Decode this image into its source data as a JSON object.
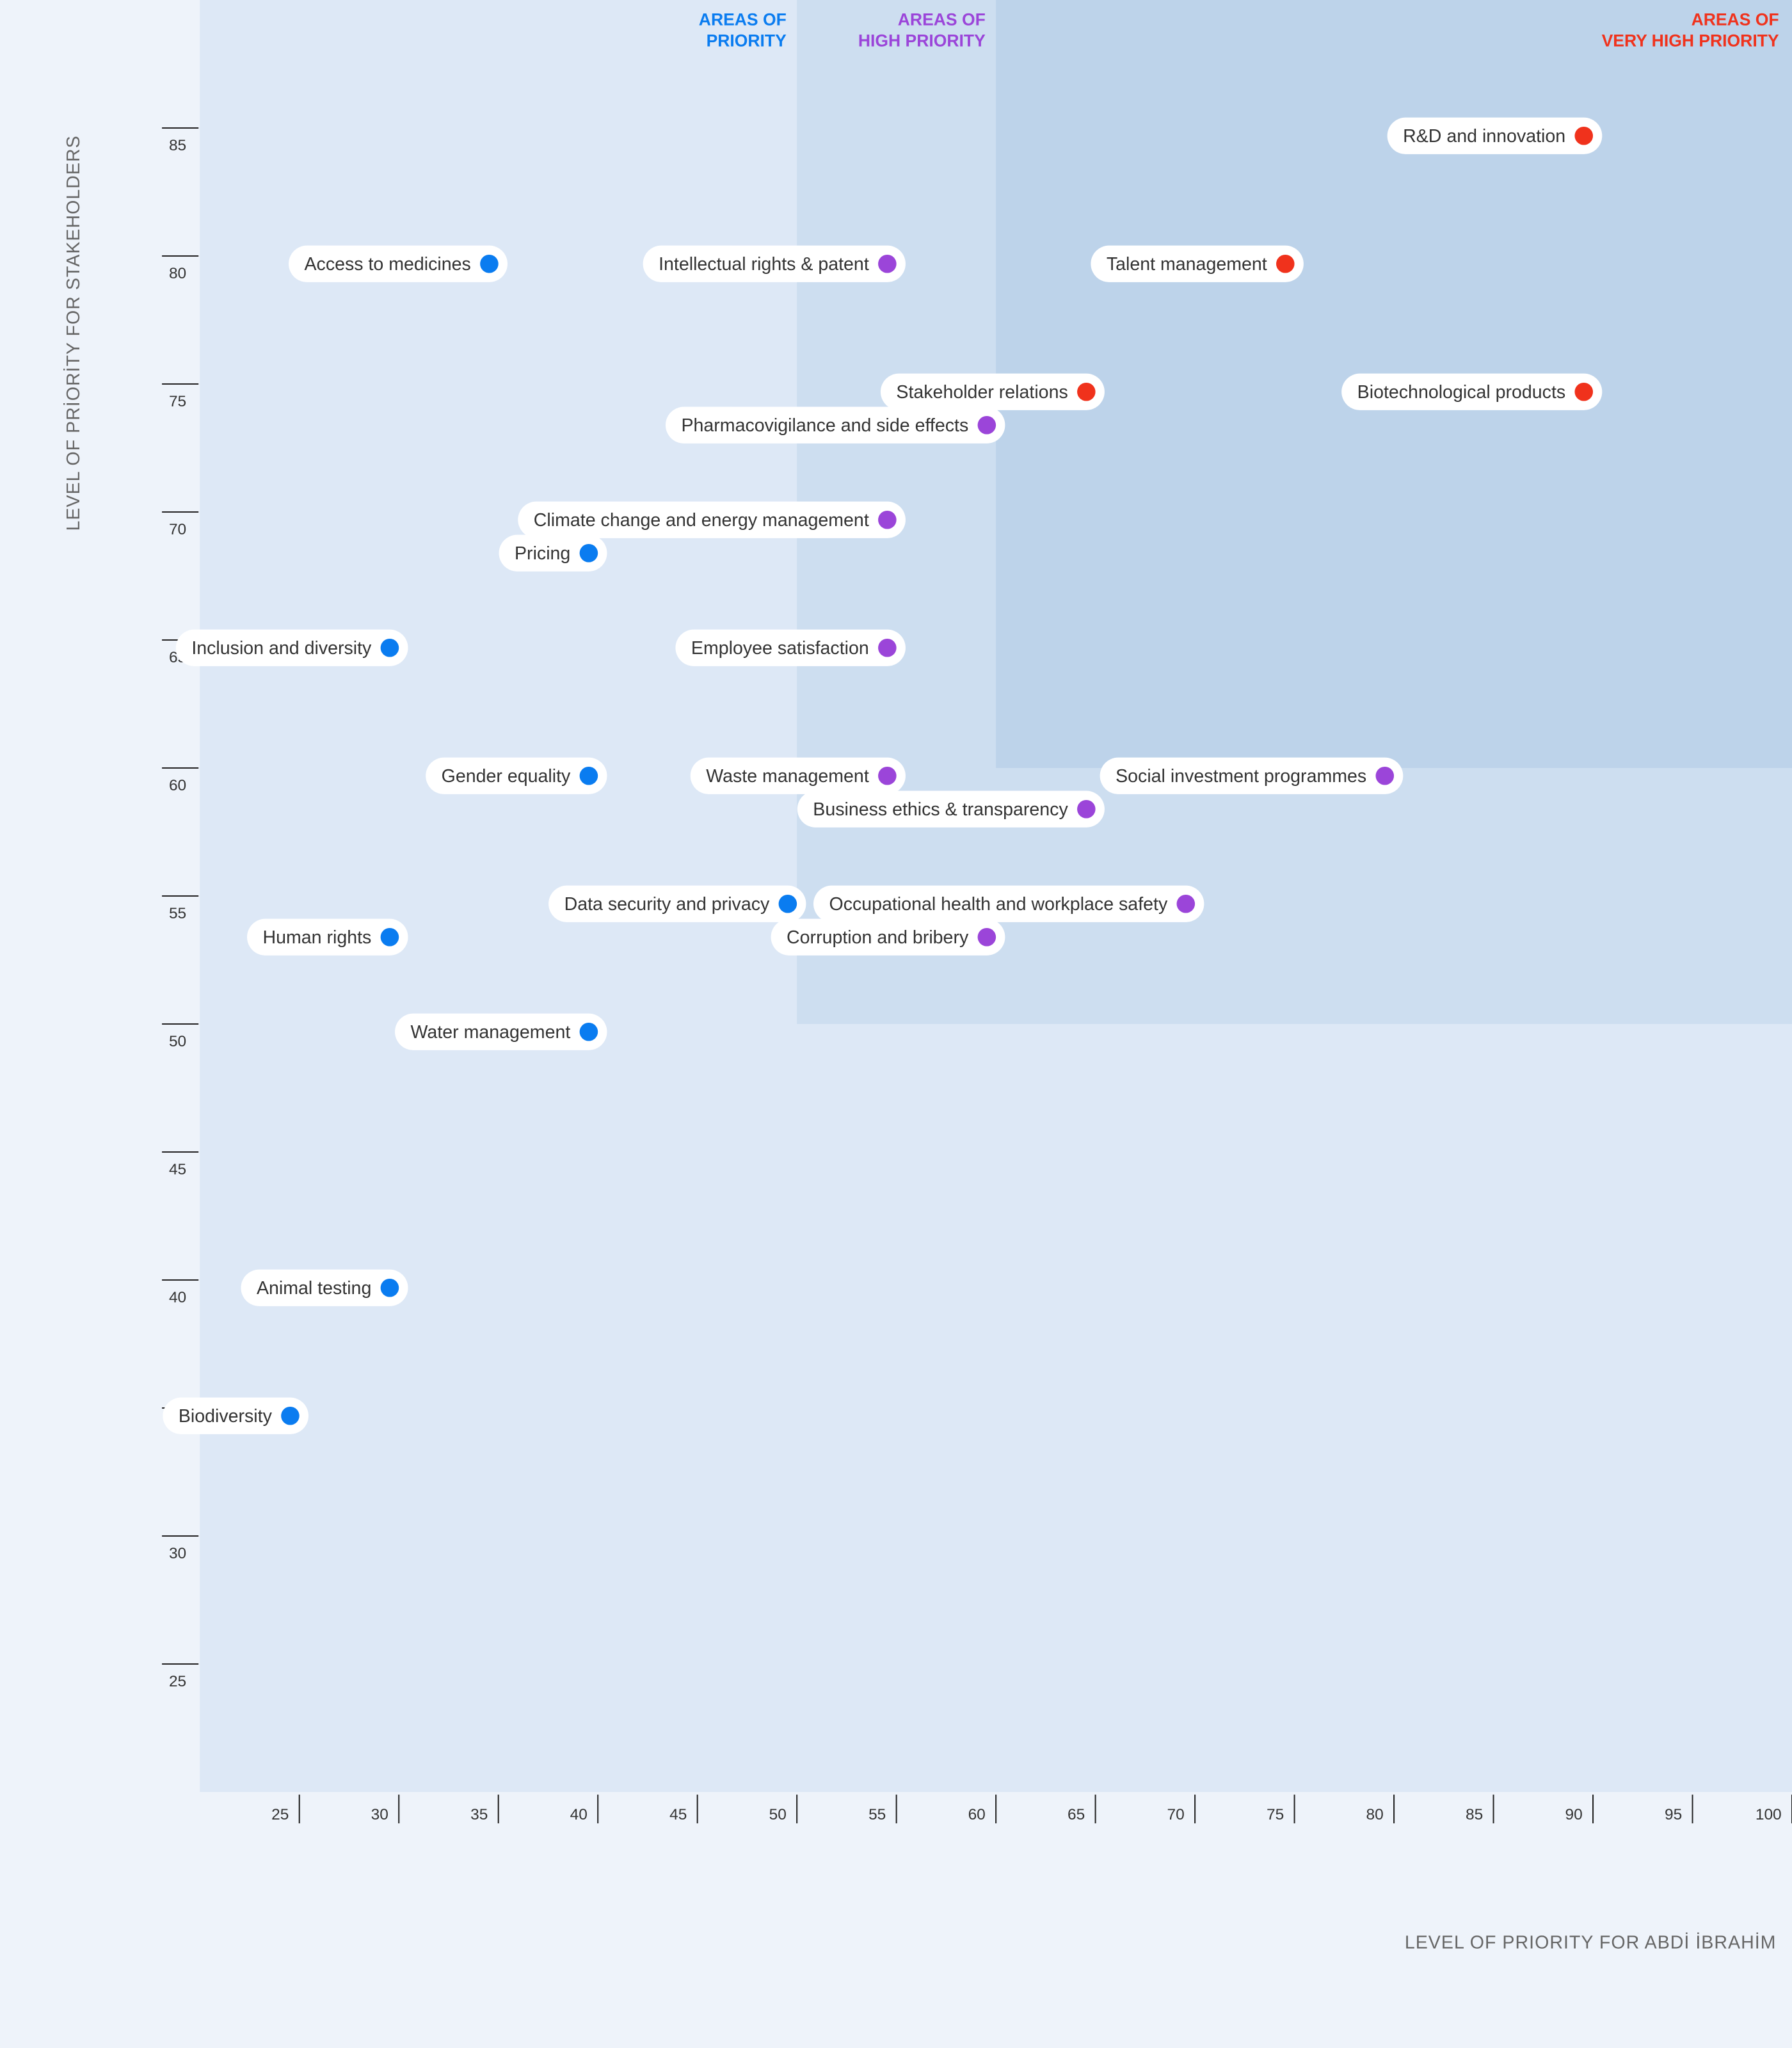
{
  "chart_data": {
    "type": "scatter",
    "x_label": "LEVEL OF PRIORITY FOR ABDİ İBRAHİM",
    "y_label": "LEVEL OF PRİORİTY FOR STAKEHOLDERS",
    "xlim": [
      20,
      100
    ],
    "ylim": [
      20,
      90
    ],
    "xticks": [
      25,
      30,
      35,
      40,
      45,
      50,
      55,
      60,
      65,
      70,
      75,
      80,
      85,
      90,
      95,
      100
    ],
    "yticks": [
      25,
      30,
      35,
      40,
      45,
      50,
      55,
      60,
      65,
      70,
      75,
      80,
      85
    ],
    "regions": [
      {
        "label": [
          "AREAS OF",
          "PRIORITY"
        ],
        "color": "#0a7cf0",
        "fill": "#dde8f6",
        "x_from": 20,
        "y_from": 20
      },
      {
        "label": [
          "AREAS OF",
          "HIGH PRIORITY"
        ],
        "color": "#9b45d9",
        "fill": "#cddef0",
        "x_from": 50,
        "y_from": 50
      },
      {
        "label": [
          "AREAS OF",
          "VERY HIGH PRIORITY"
        ],
        "color": "#f0321c",
        "fill": "#bdd3ea",
        "x_from": 60,
        "y_from": 60
      }
    ],
    "points": [
      {
        "label": "R&D and innovation",
        "x": 90,
        "y": 85,
        "color": "#f0321c"
      },
      {
        "label": "Access to medicines",
        "x": 35,
        "y": 80,
        "color": "#0a7cf0"
      },
      {
        "label": "Intellectual rights & patent",
        "x": 55,
        "y": 80,
        "color": "#9b45d9"
      },
      {
        "label": "Talent management",
        "x": 75,
        "y": 80,
        "color": "#f0321c"
      },
      {
        "label": "Stakeholder relations",
        "x": 65,
        "y": 75,
        "color": "#f0321c"
      },
      {
        "label": "Biotechnological products",
        "x": 90,
        "y": 75,
        "color": "#f0321c"
      },
      {
        "label": "Pharmacovigilance and side effects",
        "x": 60,
        "y": 73.7,
        "color": "#9b45d9"
      },
      {
        "label": "Climate change and energy management",
        "x": 55,
        "y": 70,
        "color": "#9b45d9"
      },
      {
        "label": "Pricing",
        "x": 40,
        "y": 68.7,
        "color": "#0a7cf0"
      },
      {
        "label": "Inclusion and diversity",
        "x": 30,
        "y": 65,
        "color": "#0a7cf0"
      },
      {
        "label": "Employee satisfaction",
        "x": 55,
        "y": 65,
        "color": "#9b45d9"
      },
      {
        "label": "Gender equality",
        "x": 40,
        "y": 60,
        "color": "#0a7cf0"
      },
      {
        "label": "Waste management",
        "x": 55,
        "y": 60,
        "color": "#9b45d9"
      },
      {
        "label": "Social investment programmes",
        "x": 80,
        "y": 60,
        "color": "#9b45d9"
      },
      {
        "label": "Business ethics & transparency",
        "x": 65,
        "y": 58.7,
        "color": "#9b45d9"
      },
      {
        "label": "Data security and privacy",
        "x": 50,
        "y": 55,
        "color": "#0a7cf0"
      },
      {
        "label": "Occupational health and workplace safety",
        "x": 70,
        "y": 55,
        "color": "#9b45d9"
      },
      {
        "label": "Human rights",
        "x": 30,
        "y": 53.7,
        "color": "#0a7cf0"
      },
      {
        "label": "Corruption and bribery",
        "x": 60,
        "y": 53.7,
        "color": "#9b45d9"
      },
      {
        "label": "Water management",
        "x": 40,
        "y": 50,
        "color": "#0a7cf0"
      },
      {
        "label": "Animal testing",
        "x": 30,
        "y": 40,
        "color": "#0a7cf0"
      },
      {
        "label": "Biodiversity",
        "x": 25,
        "y": 35,
        "color": "#0a7cf0"
      }
    ]
  }
}
